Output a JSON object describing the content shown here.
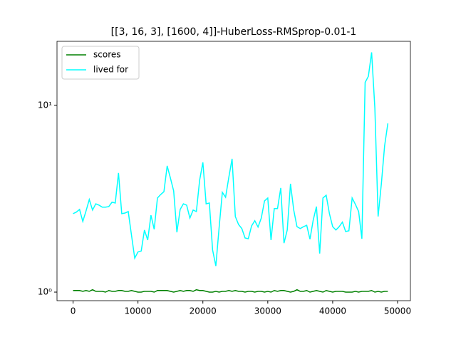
{
  "chart_data": {
    "type": "line",
    "title": "[[3, 16, 3], [1600, 4]]-HuberLoss-RMSprop-0.01-1",
    "x": [
      0,
      500,
      1000,
      1500,
      2000,
      2500,
      3000,
      3500,
      4000,
      4500,
      5000,
      5500,
      6000,
      6500,
      7000,
      7500,
      8000,
      8500,
      9000,
      9500,
      10000,
      10500,
      11000,
      11500,
      12000,
      12500,
      13000,
      13500,
      14000,
      14500,
      15000,
      15500,
      16000,
      16500,
      17000,
      17500,
      18000,
      18500,
      19000,
      19500,
      20000,
      20500,
      21000,
      21500,
      22000,
      22500,
      23000,
      23500,
      24000,
      24500,
      25000,
      25500,
      26000,
      26500,
      27000,
      27500,
      28000,
      28500,
      29000,
      29500,
      30000,
      30500,
      31000,
      31500,
      32000,
      32500,
      33000,
      33500,
      34000,
      34500,
      35000,
      35500,
      36000,
      36500,
      37000,
      37500,
      38000,
      38500,
      39000,
      39500,
      40000,
      40500,
      41000,
      41500,
      42000,
      42500,
      43000,
      43500,
      44000,
      44500,
      45000,
      45500,
      46000,
      46500,
      47000,
      47500,
      48000,
      48500
    ],
    "series": [
      {
        "name": "scores",
        "color": "#008000",
        "values": [
          1.02,
          1.02,
          1.02,
          1.01,
          1.02,
          1.01,
          1.03,
          1.01,
          1.01,
          1.01,
          1.0,
          1.02,
          1.01,
          1.01,
          1.02,
          1.02,
          1.01,
          1.01,
          1.02,
          1.01,
          1.0,
          1.0,
          1.01,
          1.01,
          1.01,
          1.0,
          1.02,
          1.02,
          1.02,
          1.02,
          1.01,
          1.0,
          1.01,
          1.02,
          1.01,
          1.02,
          1.02,
          1.01,
          1.03,
          1.02,
          1.02,
          1.01,
          1.0,
          1.0,
          1.01,
          1.0,
          1.01,
          1.01,
          1.02,
          1.01,
          1.02,
          1.01,
          1.01,
          1.0,
          1.01,
          1.01,
          1.0,
          1.01,
          1.01,
          1.0,
          1.01,
          1.0,
          1.02,
          1.01,
          1.02,
          1.02,
          1.01,
          1.0,
          1.01,
          1.03,
          1.01,
          1.01,
          1.02,
          1.0,
          1.01,
          1.02,
          1.01,
          1.0,
          1.02,
          1.01,
          1.0,
          1.01,
          1.01,
          1.01,
          1.0,
          1.0,
          1.0,
          1.01,
          1.0,
          1.01,
          1.01,
          1.01,
          1.02,
          1.0,
          1.01,
          1.0,
          1.01,
          1.01
        ]
      },
      {
        "name": "lived for",
        "color": "#00ffff",
        "values": [
          2.63,
          2.68,
          2.77,
          2.39,
          2.72,
          3.13,
          2.75,
          2.97,
          2.92,
          2.85,
          2.85,
          2.87,
          3.03,
          3.0,
          4.34,
          2.63,
          2.65,
          2.7,
          2.02,
          1.52,
          1.64,
          1.66,
          2.15,
          1.9,
          2.58,
          2.17,
          3.19,
          3.33,
          3.45,
          4.74,
          4.08,
          3.48,
          2.09,
          2.77,
          2.97,
          2.92,
          2.49,
          2.75,
          2.7,
          3.97,
          4.95,
          2.97,
          3.0,
          1.68,
          1.38,
          2.21,
          3.42,
          3.22,
          4.12,
          5.17,
          2.54,
          2.3,
          2.19,
          1.95,
          1.93,
          2.26,
          2.41,
          2.23,
          2.49,
          3.08,
          3.19,
          1.9,
          2.8,
          2.8,
          3.61,
          1.83,
          2.15,
          3.8,
          2.75,
          2.24,
          2.19,
          2.24,
          2.28,
          1.92,
          2.43,
          2.87,
          1.61,
          3.19,
          3.3,
          2.63,
          2.24,
          2.15,
          2.24,
          2.37,
          2.11,
          2.13,
          3.19,
          2.95,
          2.7,
          1.93,
          13.25,
          14.3,
          19.2,
          9.65,
          2.54,
          3.8,
          6.06,
          8.0
        ]
      }
    ],
    "xlim": [
      -2475,
      51975
    ],
    "xticks": [
      0,
      10000,
      20000,
      30000,
      40000,
      50000
    ],
    "ylim": [
      0.9,
      22
    ],
    "yticks": [
      {
        "value": 1,
        "label": "10⁰"
      },
      {
        "value": 10,
        "label": "10¹"
      }
    ],
    "log_y": true,
    "legend": "upper left"
  }
}
